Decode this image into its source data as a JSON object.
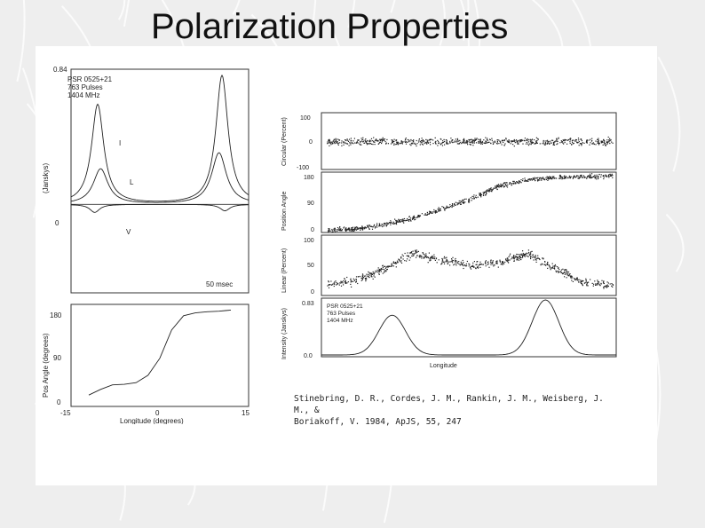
{
  "slide": {
    "title": "Polarization Properties",
    "citation_line1": "Stinebring, D. R., Cordes, J. M., Rankin, J. M., Weisberg, J. M., &",
    "citation_line2": "Boriakoff, V. 1984, ApJS, 55, 247",
    "background_color": "#eeeeee",
    "panel_color": "#ffffff"
  },
  "chart_data": [
    {
      "id": "left-profile",
      "type": "line",
      "annotation": [
        "PSR 0525+21",
        "763 Pulses",
        "1404 MHz"
      ],
      "ylabel": "(Janskys)",
      "yticks": [
        "0.84",
        "0"
      ],
      "ylim": [
        -0.55,
        0.84
      ],
      "xlim": [
        -15,
        15
      ],
      "scale_bar_label": "50 msec",
      "curve_labels": [
        "I",
        "L",
        "V"
      ],
      "series": [
        {
          "name": "I",
          "peaks": [
            {
              "x": -10.5,
              "y": 0.62,
              "width": 1.25
            },
            {
              "x": 10.5,
              "y": 0.8,
              "width": 1.25
            }
          ],
          "baseline": 0.0
        },
        {
          "name": "L",
          "peaks": [
            {
              "x": -10.0,
              "y": 0.22,
              "width": 1.5
            },
            {
              "x": 10.0,
              "y": 0.32,
              "width": 1.5
            }
          ],
          "baseline": 0.0
        },
        {
          "name": "V",
          "peaks": [
            {
              "x": -11.0,
              "y": -0.05,
              "width": 1.0
            },
            {
              "x": 11.0,
              "y": -0.04,
              "width": 1.0
            }
          ],
          "baseline": 0.0
        }
      ]
    },
    {
      "id": "left-pa",
      "type": "line",
      "ylabel": "Pos Angle (degrees)",
      "xlabel": "Longitude (degrees)",
      "yticks": [
        "180",
        "90",
        "0"
      ],
      "xticks": [
        "-15",
        "0",
        "15"
      ],
      "ylim": [
        0,
        180
      ],
      "xlim": [
        -15,
        15
      ],
      "x": [
        -12,
        -10,
        -8,
        -6,
        -4,
        -2,
        0,
        2,
        4,
        6,
        8,
        10,
        12
      ],
      "values": [
        20,
        30,
        38,
        39,
        42,
        55,
        85,
        135,
        160,
        165,
        167,
        168,
        170
      ]
    },
    {
      "id": "right-circular",
      "type": "scatter",
      "ylabel": "Circular (Percent)",
      "yticks": [
        "100",
        "0",
        "-100"
      ],
      "ylim": [
        -100,
        100
      ],
      "center": 0,
      "spread": 18
    },
    {
      "id": "right-pa",
      "type": "scatter",
      "ylabel": "Position Angle",
      "yticks": [
        "180",
        "90",
        "0"
      ],
      "ylim": [
        0,
        180
      ],
      "x": [
        0,
        0.1,
        0.2,
        0.3,
        0.4,
        0.5,
        0.6,
        0.7,
        0.8,
        0.9,
        1.0
      ],
      "values": [
        8,
        12,
        25,
        45,
        72,
        100,
        140,
        158,
        165,
        168,
        170
      ]
    },
    {
      "id": "right-linear",
      "type": "scatter",
      "ylabel": "Linear (Percent)",
      "yticks": [
        "100",
        "50",
        "0"
      ],
      "ylim": [
        0,
        100
      ],
      "x": [
        0,
        0.1,
        0.2,
        0.3,
        0.4,
        0.5,
        0.6,
        0.7,
        0.8,
        0.9,
        1.0
      ],
      "values": [
        18,
        25,
        45,
        70,
        60,
        50,
        55,
        70,
        45,
        22,
        18
      ]
    },
    {
      "id": "right-intensity",
      "type": "line",
      "annotation": [
        "PSR 0525+21",
        "763 Pulses",
        "1404 MHz"
      ],
      "ylabel": "Intensity (Janskys)",
      "xlabel": "Longitude",
      "yticks": [
        "0.83",
        "0.0"
      ],
      "ylim": [
        0,
        0.83
      ],
      "xlim": [
        0,
        1
      ],
      "series": [
        {
          "name": "I",
          "peaks": [
            {
              "x": 0.24,
              "y": 0.6,
              "width": 0.045
            },
            {
              "x": 0.76,
              "y": 0.83,
              "width": 0.045
            }
          ]
        }
      ]
    }
  ]
}
